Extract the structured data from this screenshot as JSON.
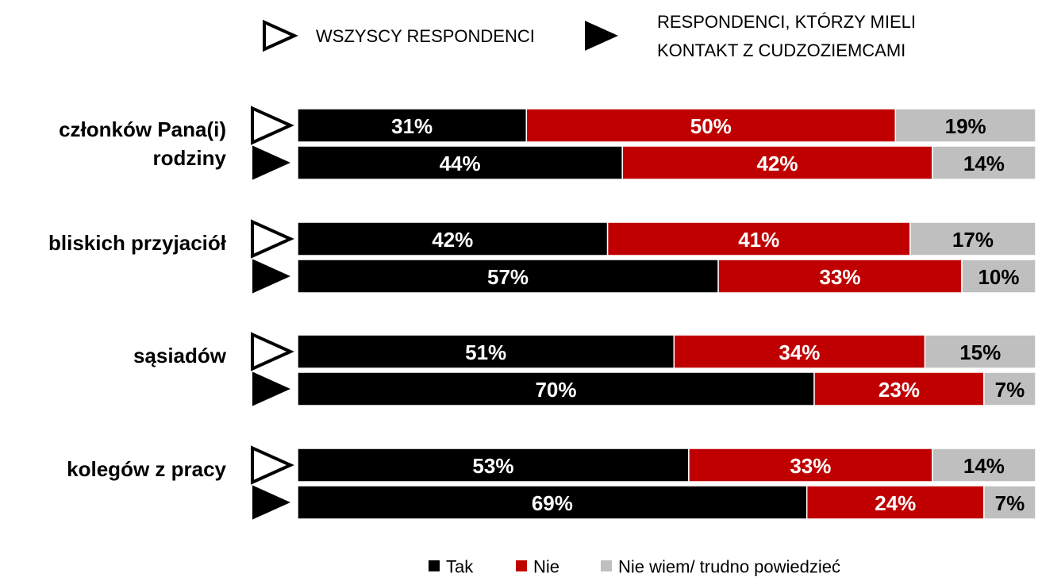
{
  "chart_data": {
    "type": "bar",
    "orientation": "horizontal",
    "stacked": true,
    "categories": [
      "członków Pana(i) rodziny",
      "bliskich przyjaciół",
      "sąsiadów",
      "kolegów z pracy"
    ],
    "subgroups": [
      "WSZYSCY RESPONDENCI",
      "RESPONDENCI, KTÓRZY MIELI KONTAKT Z CUDZOZIEMCAMI"
    ],
    "xlim": [
      0,
      100
    ],
    "series": [
      {
        "name": "Tak",
        "color": "#000000",
        "label_color": "#ffffff",
        "values": [
          [
            31,
            44
          ],
          [
            42,
            57
          ],
          [
            51,
            70
          ],
          [
            53,
            69
          ]
        ],
        "value_labels": [
          [
            "31%",
            "44%"
          ],
          [
            "42%",
            "57%"
          ],
          [
            "51%",
            "70%"
          ],
          [
            "53%",
            "69%"
          ]
        ]
      },
      {
        "name": "Nie",
        "color": "#c00000",
        "label_color": "#ffffff",
        "values": [
          [
            50,
            42
          ],
          [
            41,
            33
          ],
          [
            34,
            23
          ],
          [
            33,
            24
          ]
        ],
        "value_labels": [
          [
            "50%",
            "42%"
          ],
          [
            "41%",
            "33%"
          ],
          [
            "34%",
            "23%"
          ],
          [
            "33%",
            "24%"
          ]
        ]
      },
      {
        "name": "Nie wiem/ trudno powiedzieć",
        "color": "#bfbfbf",
        "label_color": "#000000",
        "values": [
          [
            19,
            14
          ],
          [
            17,
            10
          ],
          [
            15,
            7
          ],
          [
            14,
            7
          ]
        ],
        "value_labels": [
          [
            "19%",
            "14%"
          ],
          [
            "17%",
            "10%"
          ],
          [
            "15%",
            "7%"
          ],
          [
            "14%",
            "7%"
          ]
        ]
      }
    ]
  }
}
